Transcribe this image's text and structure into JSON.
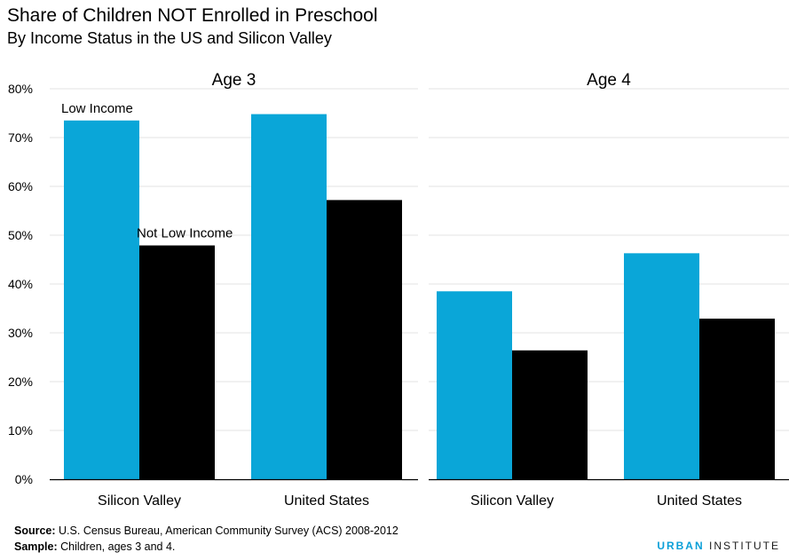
{
  "header": {
    "title": "Share of Children NOT Enrolled in Preschool",
    "subtitle": "By Income Status in the US and Silicon Valley"
  },
  "chart_data": {
    "type": "bar",
    "ylim": [
      0,
      80
    ],
    "yticks": [
      0,
      10,
      20,
      30,
      40,
      50,
      60,
      70,
      80
    ],
    "ytick_suffix": "%",
    "grid": true,
    "colors": {
      "Low Income": "#0aa6d8",
      "Not Low Income": "#000000"
    },
    "panels": [
      {
        "title": "Age 3",
        "categories": [
          "Silicon Valley",
          "United States"
        ],
        "series": [
          {
            "name": "Low Income",
            "values": [
              73.5,
              74.8
            ]
          },
          {
            "name": "Not Low Income",
            "values": [
              47.9,
              57.2
            ]
          }
        ],
        "series_labels": [
          "Low Income",
          "Not Low Income"
        ]
      },
      {
        "title": "Age 4",
        "categories": [
          "Silicon Valley",
          "United States"
        ],
        "series": [
          {
            "name": "Low Income",
            "values": [
              38.5,
              46.3
            ]
          },
          {
            "name": "Not Low Income",
            "values": [
              26.4,
              32.9
            ]
          }
        ],
        "series_labels": []
      }
    ]
  },
  "footer": {
    "source_label": "Source:",
    "source_text": "U.S. Census Bureau, American Community Survey (ACS) 2008-2012",
    "sample_label": "Sample:",
    "sample_text": "Children, ages 3 and 4."
  },
  "brand": {
    "first": "URBAN",
    "second": "INSTITUTE"
  }
}
